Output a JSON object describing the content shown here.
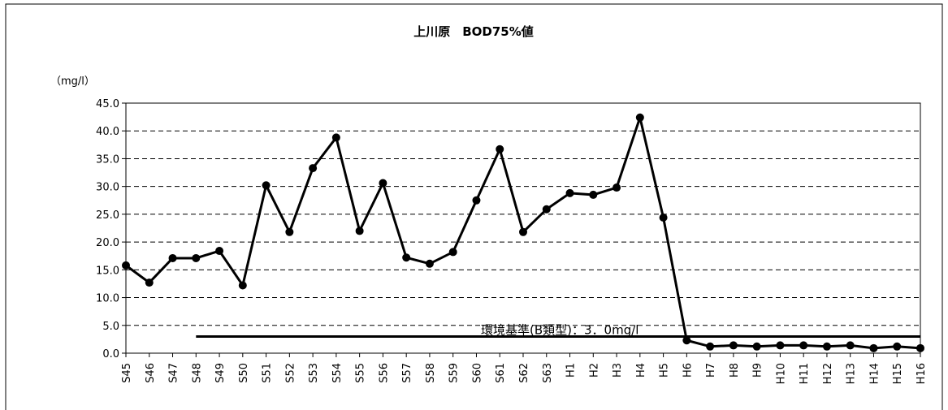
{
  "chart_data": {
    "type": "line",
    "title": "上川原　BOD75%値",
    "y_label": "（mg/l）",
    "categories": [
      "S45",
      "S46",
      "S47",
      "S48",
      "S49",
      "S50",
      "S51",
      "S52",
      "S53",
      "S54",
      "S55",
      "S56",
      "S57",
      "S58",
      "S59",
      "S60",
      "S61",
      "S62",
      "S63",
      "H1",
      "H2",
      "H3",
      "H4",
      "H5",
      "H6",
      "H7",
      "H8",
      "H9",
      "H10",
      "H11",
      "H12",
      "H13",
      "H14",
      "H15",
      "H16"
    ],
    "series": [
      {
        "name": "BOD75%値",
        "color": "#000000",
        "values": [
          15.8,
          12.7,
          17.1,
          17.1,
          18.4,
          12.2,
          30.2,
          21.8,
          33.3,
          38.8,
          22.0,
          30.6,
          17.2,
          16.1,
          18.2,
          27.5,
          36.7,
          21.8,
          25.9,
          28.8,
          28.5,
          29.8,
          42.4,
          24.4,
          2.3,
          1.2,
          1.4,
          1.2,
          1.4,
          1.4,
          1.2,
          1.4,
          0.9,
          1.2,
          0.9
        ]
      }
    ],
    "reference_line": {
      "value": 3,
      "label": "環境基準(B類型)：3．0mg/l",
      "from_category": "S48"
    },
    "ylim": [
      0,
      45
    ],
    "yticks": [
      {
        "value": 0,
        "label": "0.0"
      },
      {
        "value": 5,
        "label": "5.0"
      },
      {
        "value": 10,
        "label": "10.0"
      },
      {
        "value": 15,
        "label": "15.0"
      },
      {
        "value": 20,
        "label": "20.0"
      },
      {
        "value": 25,
        "label": "25.0"
      },
      {
        "value": 30,
        "label": "30.0"
      },
      {
        "value": 35,
        "label": "35.0"
      },
      {
        "value": 40,
        "label": "40.0"
      },
      {
        "value": 45,
        "label": "45.0"
      }
    ],
    "grid": true
  }
}
